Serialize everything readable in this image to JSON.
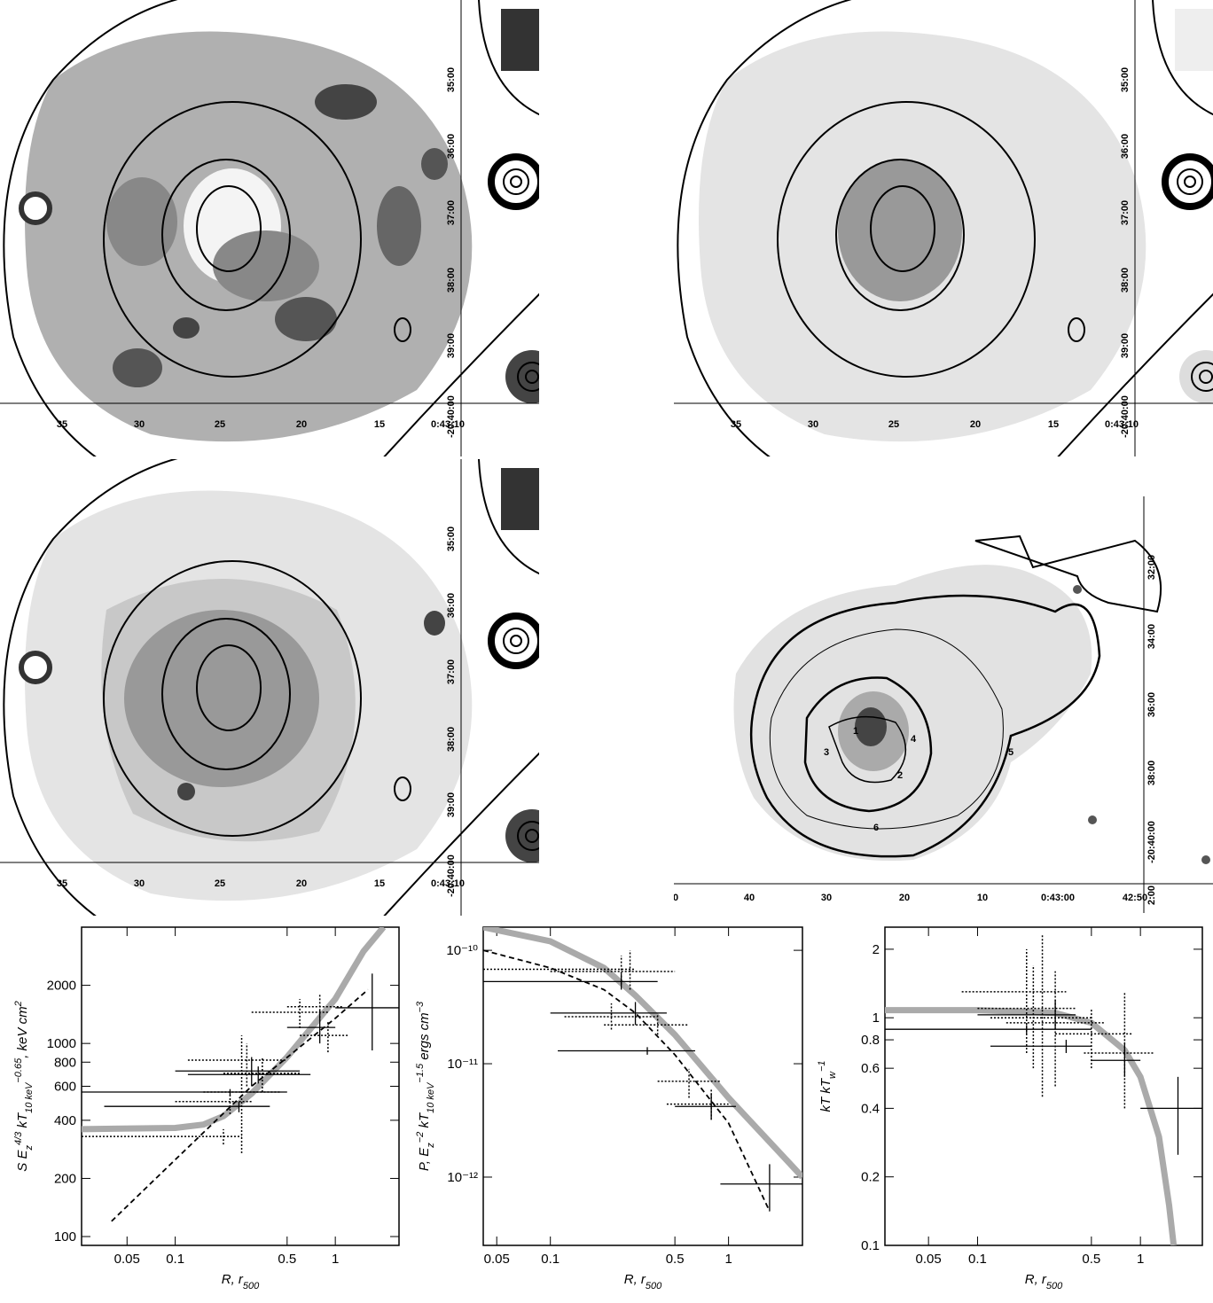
{
  "maps": [
    {
      "xticks": [
        "35",
        "30",
        "25",
        "20",
        "15",
        "0:43:10"
      ],
      "yticks": [
        "35:00",
        "36:00",
        "37:00",
        "38:00",
        "39:00",
        "-20:40:00"
      ]
    },
    {
      "xticks": [
        "35",
        "30",
        "25",
        "20",
        "15",
        "0:43:10"
      ],
      "yticks": [
        "35:00",
        "36:00",
        "37:00",
        "38:00",
        "39:00",
        "-20:40:00"
      ]
    },
    {
      "xticks": [
        "35",
        "30",
        "25",
        "20",
        "15",
        "0:43:10"
      ],
      "yticks": [
        "35:00",
        "36:00",
        "37:00",
        "38:00",
        "39:00",
        "-20:40:00"
      ]
    },
    {
      "xticks": [
        "0",
        "40",
        "30",
        "20",
        "10",
        "0:43:00",
        "42:50"
      ],
      "yticks": [
        "32:00",
        "34:00",
        "36:00",
        "38:00",
        "-20:40:00",
        "2:00"
      ],
      "regions": [
        "1",
        "2",
        "3",
        "4",
        "5",
        "6"
      ]
    }
  ],
  "chart_data": [
    {
      "type": "errorbar",
      "log_x": true,
      "log_y": true,
      "xlabel": [
        "R,  r",
        "500"
      ],
      "ylabel": [
        "S E",
        "z",
        "4/3",
        " kT",
        "10 keV",
        "−0.65",
        ", keV cm",
        "2"
      ],
      "xlim": [
        0.026,
        2.5
      ],
      "ylim": [
        90,
        4000
      ],
      "xticks": [
        0.05,
        0.1,
        0.5,
        1
      ],
      "yticks": [
        100,
        200,
        400,
        600,
        800,
        1000,
        2000
      ],
      "points": {
        "x": [
          0.22,
          0.25,
          0.3,
          0.33,
          0.8,
          1.7
        ],
        "x_lo": [
          0.026,
          0.036,
          0.1,
          0.12,
          0.5,
          1.0
        ],
        "x_hi": [
          0.5,
          0.39,
          0.6,
          0.7,
          1.0,
          2.5
        ],
        "y": [
          560,
          472,
          720,
          690,
          1210,
          1530
        ],
        "y_lo": [
          540,
          440,
          600,
          620,
          1000,
          920
        ],
        "y_hi": [
          580,
          500,
          850,
          760,
          1500,
          2300
        ]
      },
      "points_dotted": {
        "x": [
          0.2,
          0.22,
          0.26,
          0.28,
          0.35,
          0.6,
          0.8,
          0.9
        ],
        "x_lo": [
          0.026,
          0.1,
          0.15,
          0.12,
          0.2,
          0.3,
          0.5,
          0.6
        ],
        "x_hi": [
          0.26,
          0.3,
          0.45,
          0.5,
          0.6,
          0.9,
          1.1,
          1.2
        ],
        "y": [
          330,
          500,
          560,
          820,
          700,
          1450,
          1550,
          1100
        ],
        "y_lo": [
          300,
          430,
          270,
          600,
          560,
          1200,
          1300,
          900
        ],
        "y_hi": [
          360,
          560,
          1100,
          1000,
          850,
          1700,
          1800,
          1300
        ]
      },
      "curves": [
        {
          "color": "#aaaaaa",
          "dash": false,
          "x": [
            0.026,
            0.1,
            0.15,
            0.2,
            0.3,
            0.5,
            1,
            1.5,
            2
          ],
          "values": [
            360,
            365,
            380,
            420,
            550,
            850,
            1700,
            3000,
            4000
          ]
        },
        {
          "color": "#000000",
          "dash": true,
          "x": [
            0.04,
            0.1,
            0.3,
            1,
            1.6
          ],
          "values": [
            120,
            250,
            600,
            1350,
            1900
          ]
        }
      ]
    },
    {
      "type": "errorbar",
      "log_x": true,
      "log_y": true,
      "xlabel": [
        "R,  r",
        "500"
      ],
      "ylabel": [
        "P, E",
        "z",
        "−2",
        " kT",
        "10 keV",
        "−1.5",
        "  ergs cm",
        "−3"
      ],
      "xlim": [
        0.042,
        2.6
      ],
      "ylim": [
        2.5e-13,
        1.6e-10
      ],
      "xticks": [
        0.05,
        0.1,
        0.5,
        1
      ],
      "yticks": [
        {
          "value": 1e-12,
          "label": "10⁻¹²"
        },
        {
          "value": 1e-11,
          "label": "10⁻¹¹"
        },
        {
          "value": 1e-10,
          "label": "10⁻¹⁰"
        }
      ],
      "points": {
        "x": [
          0.25,
          0.3,
          0.35,
          0.8,
          1.7
        ],
        "x_lo": [
          0.042,
          0.1,
          0.11,
          0.5,
          0.9
        ],
        "x_hi": [
          0.4,
          0.45,
          0.65,
          1.1,
          2.6
        ],
        "y": [
          5.3e-11,
          2.8e-11,
          1.3e-11,
          4.2e-12,
          8.7e-13
        ],
        "y_lo": [
          4.5e-11,
          2.2e-11,
          1.2e-11,
          3.3e-12,
          5e-13
        ],
        "y_hi": [
          6.2e-11,
          3.5e-11,
          1.4e-11,
          5.5e-12,
          1.3e-12
        ]
      },
      "points_dotted": {
        "x": [
          0.25,
          0.28,
          0.22,
          0.4,
          0.6,
          0.8
        ],
        "x_lo": [
          0.042,
          0.1,
          0.12,
          0.2,
          0.4,
          0.45
        ],
        "x_hi": [
          0.3,
          0.5,
          0.4,
          0.6,
          0.9,
          1.0
        ],
        "y": [
          6.8e-11,
          6.5e-11,
          2.6e-11,
          2.2e-11,
          7e-12,
          4.4e-12
        ],
        "y_lo": [
          5e-11,
          4.5e-11,
          2e-11,
          1.8e-11,
          5e-12,
          3.2e-12
        ],
        "y_hi": [
          9e-11,
          1e-10,
          3.4e-11,
          2.8e-11,
          9e-12,
          6e-12
        ]
      },
      "curves": [
        {
          "color": "#aaaaaa",
          "dash": false,
          "x": [
            0.042,
            0.1,
            0.2,
            0.3,
            0.5,
            1,
            2.6
          ],
          "values": [
            1.6e-10,
            1.2e-10,
            7e-11,
            4e-11,
            1.8e-11,
            5e-12,
            1e-12
          ]
        },
        {
          "color": "#000000",
          "dash": true,
          "x": [
            0.042,
            0.1,
            0.2,
            0.3,
            0.5,
            1,
            1.7
          ],
          "values": [
            1e-10,
            7e-11,
            4.5e-11,
            2.8e-11,
            1.2e-11,
            3e-12,
            5e-13
          ]
        }
      ]
    },
    {
      "type": "errorbar",
      "log_x": true,
      "log_y": true,
      "xlabel": [
        "R,  r",
        "500"
      ],
      "ylabel": [
        "kT kT",
        "w",
        "−1"
      ],
      "xlim": [
        0.027,
        2.4
      ],
      "ylim": [
        0.1,
        2.5
      ],
      "xticks": [
        0.05,
        0.1,
        0.5,
        1
      ],
      "yticks": [
        0.1,
        0.2,
        0.4,
        0.6,
        0.8,
        1,
        2
      ],
      "points": {
        "x": [
          0.2,
          0.3,
          0.35,
          0.8,
          1.7
        ],
        "x_lo": [
          0.027,
          0.1,
          0.12,
          0.5,
          1.0
        ],
        "x_hi": [
          0.5,
          0.4,
          0.5,
          1.0,
          2.4
        ],
        "y": [
          0.89,
          1.03,
          0.75,
          0.65,
          0.4
        ],
        "y_lo": [
          0.85,
          0.9,
          0.7,
          0.55,
          0.25
        ],
        "y_hi": [
          0.93,
          1.2,
          0.8,
          0.78,
          0.55
        ]
      },
      "points_dotted": {
        "x": [
          0.2,
          0.25,
          0.3,
          0.22,
          0.8,
          0.5
        ],
        "x_lo": [
          0.08,
          0.12,
          0.15,
          0.1,
          0.45,
          0.3
        ],
        "x_hi": [
          0.35,
          0.5,
          0.6,
          0.4,
          1.2,
          0.9
        ],
        "y": [
          1.3,
          1.0,
          0.95,
          1.1,
          0.7,
          0.85
        ],
        "y_lo": [
          0.7,
          0.45,
          0.5,
          0.6,
          0.4,
          0.6
        ],
        "y_hi": [
          2.0,
          2.3,
          1.6,
          1.7,
          1.3,
          1.1
        ]
      },
      "curves": [
        {
          "color": "#aaaaaa",
          "dash": false,
          "x": [
            0.027,
            0.1,
            0.3,
            0.5,
            0.8,
            1,
            1.3,
            1.5,
            1.6
          ],
          "values": [
            1.08,
            1.08,
            1.05,
            0.95,
            0.72,
            0.55,
            0.3,
            0.15,
            0.1
          ]
        }
      ]
    }
  ]
}
